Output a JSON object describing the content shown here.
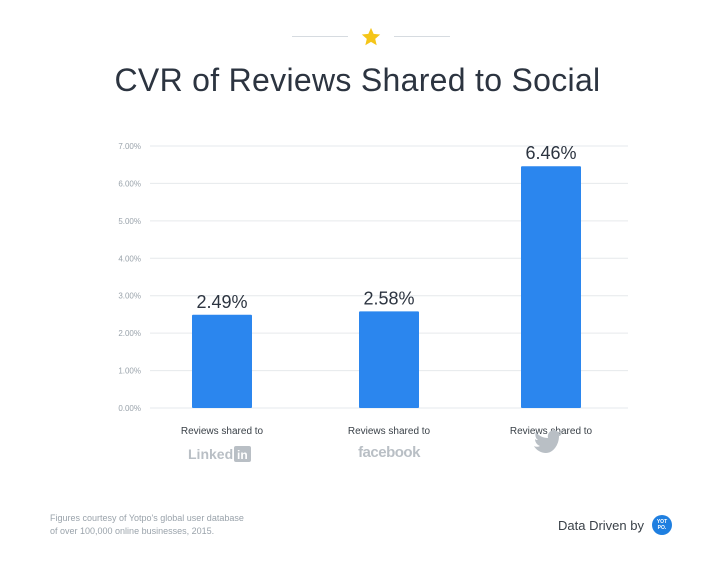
{
  "header": {
    "title": "CVR of Reviews Shared to Social"
  },
  "chart_data": {
    "type": "bar",
    "title": "CVR of Reviews Shared to Social",
    "categories": [
      "Reviews shared to LinkedIn",
      "Reviews shared to Facebook",
      "Reviews shared to Twitter"
    ],
    "category_labels": [
      "Reviews shared to",
      "Reviews shared to",
      "Reviews shared to"
    ],
    "category_logos": [
      "Linked",
      "in",
      "facebook",
      "twitter-bird-icon"
    ],
    "values": [
      2.49,
      2.58,
      6.46
    ],
    "value_labels": [
      "2.49%",
      "2.58%",
      "6.46%"
    ],
    "yticks": [
      "0.00%",
      "1.00%",
      "2.00%",
      "3.00%",
      "4.00%",
      "5.00%",
      "6.00%",
      "7.00%"
    ],
    "ylim": [
      0,
      7
    ],
    "grid": true,
    "bar_color": "#2b86ee",
    "xlabel": "",
    "ylabel": ""
  },
  "footer": {
    "note_line1": "Figures courtesy of Yotpo's global user database",
    "note_line2": "of over 100,000 online businesses, 2015.",
    "brand_label": "Data Driven by",
    "badge_line1": "YOT",
    "badge_line2": "PO."
  },
  "colors": {
    "accent_star": "#f5c518",
    "bar": "#2b86ee",
    "logo_gray": "#b9bfc5"
  }
}
